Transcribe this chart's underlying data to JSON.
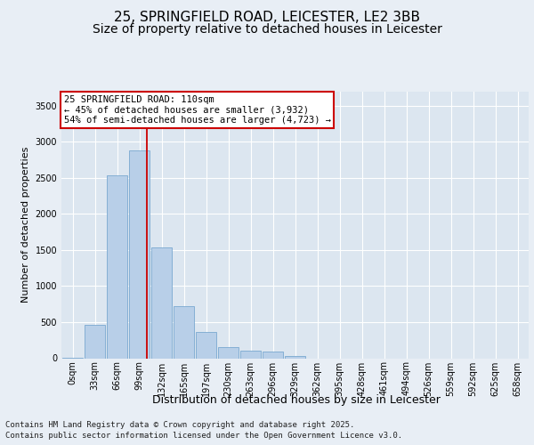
{
  "title_line1": "25, SPRINGFIELD ROAD, LEICESTER, LE2 3BB",
  "title_line2": "Size of property relative to detached houses in Leicester",
  "xlabel": "Distribution of detached houses by size in Leicester",
  "ylabel": "Number of detached properties",
  "categories": [
    "0sqm",
    "33sqm",
    "66sqm",
    "99sqm",
    "132sqm",
    "165sqm",
    "197sqm",
    "230sqm",
    "263sqm",
    "296sqm",
    "329sqm",
    "362sqm",
    "395sqm",
    "428sqm",
    "461sqm",
    "494sqm",
    "526sqm",
    "559sqm",
    "592sqm",
    "625sqm",
    "658sqm"
  ],
  "values": [
    5,
    460,
    2530,
    2880,
    1530,
    720,
    370,
    155,
    110,
    90,
    30,
    0,
    0,
    0,
    0,
    0,
    0,
    0,
    0,
    0,
    0
  ],
  "bar_color": "#b8cfe8",
  "bar_edge_color": "#7aa8d0",
  "vline_x": 3.34,
  "vline_color": "#cc0000",
  "annotation_title": "25 SPRINGFIELD ROAD: 110sqm",
  "annotation_line1": "← 45% of detached houses are smaller (3,932)",
  "annotation_line2": "54% of semi-detached houses are larger (4,723) →",
  "annotation_box_color": "#cc0000",
  "ylim": [
    0,
    3700
  ],
  "yticks": [
    0,
    500,
    1000,
    1500,
    2000,
    2500,
    3000,
    3500
  ],
  "background_color": "#e8eef5",
  "plot_bg_color": "#dce6f0",
  "grid_color": "#ffffff",
  "footer_line1": "Contains HM Land Registry data © Crown copyright and database right 2025.",
  "footer_line2": "Contains public sector information licensed under the Open Government Licence v3.0.",
  "title_fontsize": 11,
  "subtitle_fontsize": 10,
  "ylabel_fontsize": 8,
  "xlabel_fontsize": 9,
  "tick_fontsize": 7,
  "annotation_fontsize": 7.5,
  "footer_fontsize": 6.5
}
